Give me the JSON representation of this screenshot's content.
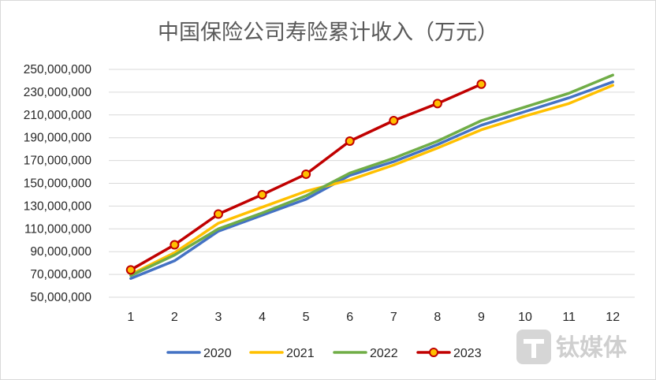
{
  "chart_data": {
    "type": "line",
    "title": "中国保险公司寿险累计收入（万元）",
    "xlabel": "",
    "ylabel": "",
    "categories": [
      "1",
      "2",
      "3",
      "4",
      "5",
      "6",
      "7",
      "8",
      "9",
      "10",
      "11",
      "12"
    ],
    "ylim": [
      50000000,
      250000000
    ],
    "yticks": [
      {
        "value": 50000000,
        "label": "50,000,000"
      },
      {
        "value": 70000000,
        "label": "70,000,000"
      },
      {
        "value": 90000000,
        "label": "90,000,000"
      },
      {
        "value": 110000000,
        "label": "110,000,000"
      },
      {
        "value": 130000000,
        "label": "130,000,000"
      },
      {
        "value": 150000000,
        "label": "150,000,000"
      },
      {
        "value": 170000000,
        "label": "170,000,000"
      },
      {
        "value": 190000000,
        "label": "190,000,000"
      },
      {
        "value": 210000000,
        "label": "210,000,000"
      },
      {
        "value": 230000000,
        "label": "230,000,000"
      },
      {
        "value": 250000000,
        "label": "250,000,000"
      }
    ],
    "grid": true,
    "legend_position": "bottom",
    "series": [
      {
        "name": "2020",
        "color": "#4472c4",
        "markers": false,
        "values": [
          66500000,
          82000000,
          108000000,
          122000000,
          136000000,
          157000000,
          169000000,
          184000000,
          201000000,
          213000000,
          225000000,
          239000000
        ]
      },
      {
        "name": "2021",
        "color": "#ffc000",
        "markers": false,
        "values": [
          70000000,
          89000000,
          115000000,
          129000000,
          143000000,
          153000000,
          166000000,
          181000000,
          197000000,
          209000000,
          220000000,
          236000000
        ]
      },
      {
        "name": "2022",
        "color": "#70ad47",
        "markers": false,
        "values": [
          69000000,
          87000000,
          110000000,
          124000000,
          139000000,
          159000000,
          172000000,
          187000000,
          205000000,
          217000000,
          229000000,
          245000000
        ]
      },
      {
        "name": "2023",
        "color": "#c00000",
        "marker_color": "#ffc000",
        "markers": true,
        "values": [
          74000000,
          96000000,
          123000000,
          140000000,
          158000000,
          187000000,
          205000000,
          220000000,
          237000000,
          null,
          null,
          null
        ]
      }
    ]
  },
  "watermark": {
    "text": "钛媒体"
  }
}
